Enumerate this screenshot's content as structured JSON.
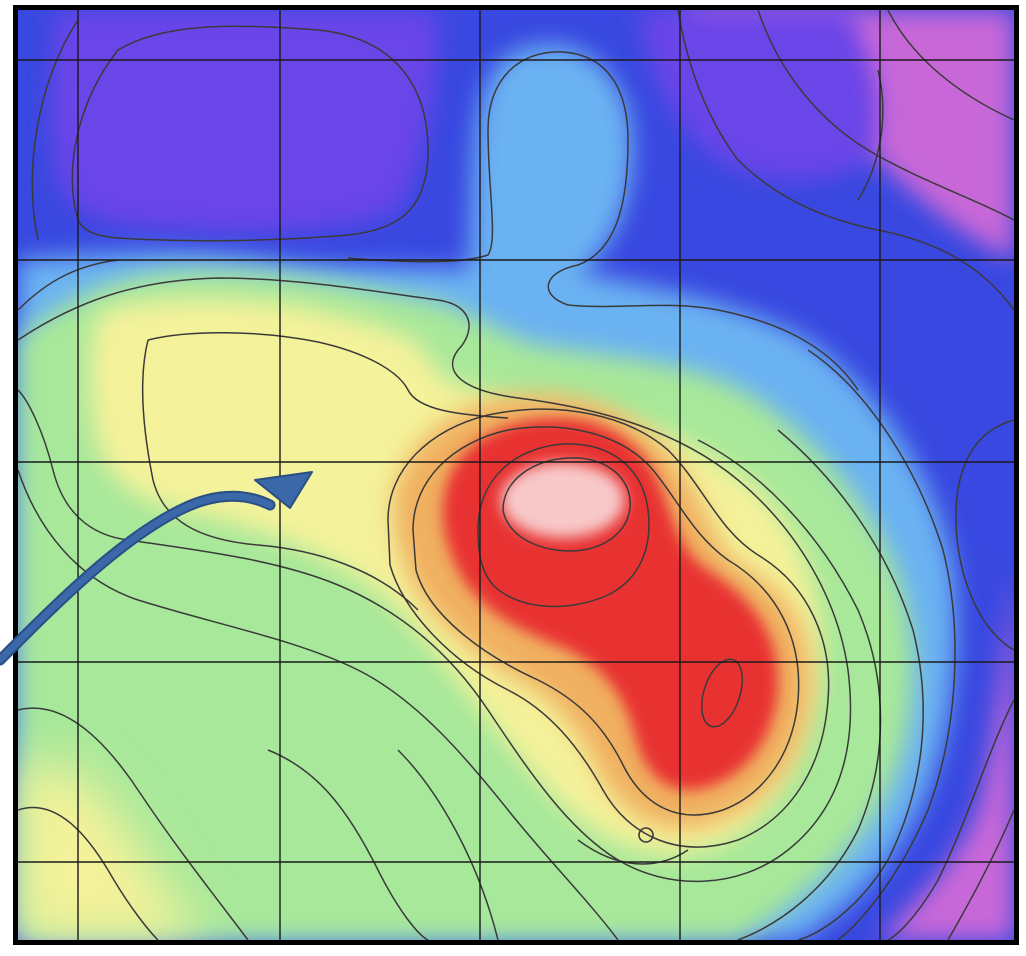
{
  "map": {
    "kind": "color-relief contour map",
    "palette": {
      "violet": "#6a45e8",
      "blue": "#3848e0",
      "sky": "#6ab2f2",
      "green": "#a8e89a",
      "yellow": "#f4f29a",
      "orange": "#f0b060",
      "red": "#e83030",
      "pink": "#f8c8c8",
      "magenta": "#c868d8",
      "contour": "#3a3a3a",
      "grid": "#1a1a1a",
      "frame": "#000000",
      "arrow": "#3a68a8"
    },
    "grid": {
      "rows": 5,
      "cols": 5
    },
    "annotation": {
      "type": "curved-arrow",
      "icon": "arrow-icon"
    },
    "marker": {
      "type": "small-circle"
    }
  }
}
